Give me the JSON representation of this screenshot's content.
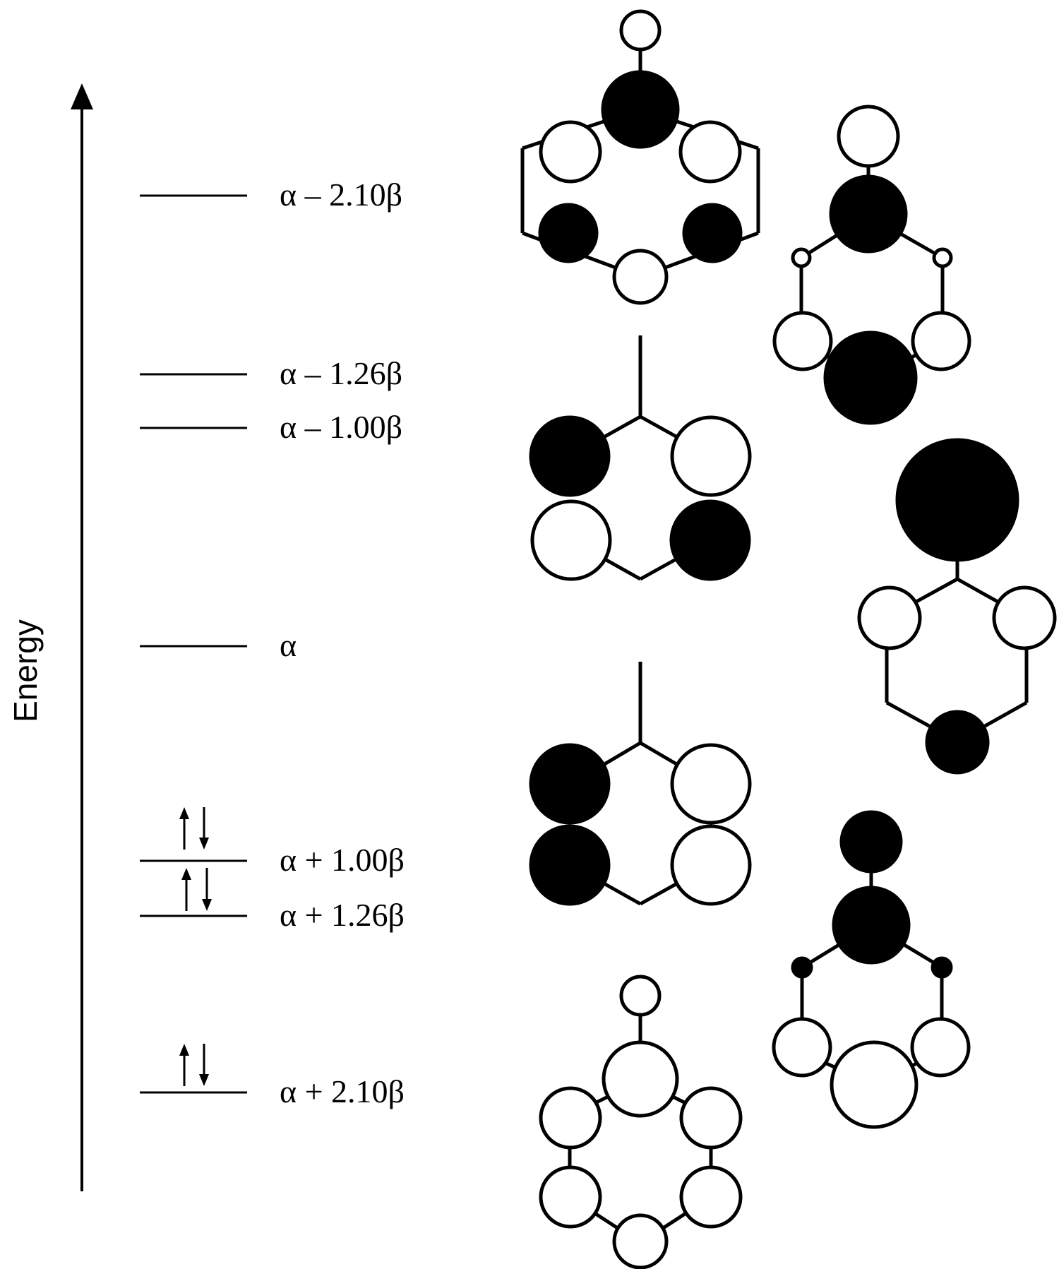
{
  "axis": {
    "label": "Energy"
  },
  "levels": [
    {
      "id": "lv-a-210",
      "label": "α – 2.10β",
      "electrons": 0
    },
    {
      "id": "lv-a-126",
      "label": "α – 1.26β",
      "electrons": 0
    },
    {
      "id": "lv-a-100",
      "label": "α – 1.00β",
      "electrons": 0
    },
    {
      "id": "lv-a",
      "label": "α",
      "electrons": 0
    },
    {
      "id": "lv-a+100",
      "label": "α + 1.00β",
      "electrons": 2
    },
    {
      "id": "lv-a+126",
      "label": "α + 1.26β",
      "electrons": 2
    },
    {
      "id": "lv-a+210",
      "label": "α + 2.10β",
      "electrons": 2
    }
  ],
  "orbital_legend": {
    "filled": "#000000",
    "open": "#ffffff",
    "stroke": "#000000"
  }
}
